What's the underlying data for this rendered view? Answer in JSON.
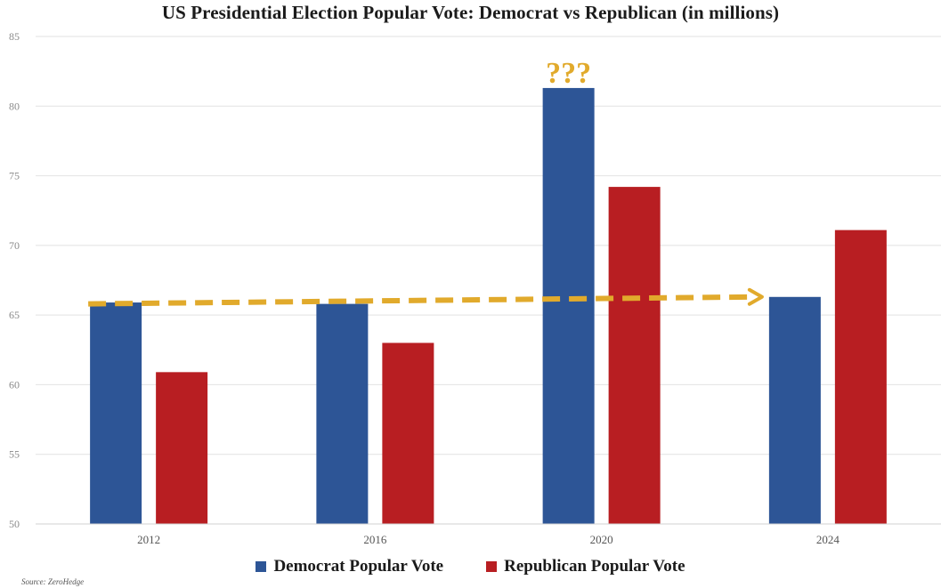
{
  "chart_data": {
    "type": "bar",
    "title": "US Presidential Election Popular Vote: Democrat vs Republican (in millions)",
    "categories": [
      "2012",
      "2016",
      "2020",
      "2024"
    ],
    "series": [
      {
        "name": "Democrat Popular Vote",
        "values": [
          65.9,
          65.8,
          81.3,
          66.3
        ],
        "color": "#2d5596"
      },
      {
        "name": "Republican Popular Vote",
        "values": [
          60.9,
          63.0,
          74.2,
          71.1
        ],
        "color": "#b81e22"
      }
    ],
    "ylim": [
      50,
      85
    ],
    "yticks": [
      50,
      55,
      60,
      65,
      70,
      75,
      80,
      85
    ],
    "xlabel": "",
    "ylabel": "",
    "grid": true,
    "legend_position": "bottom",
    "annotations": [
      {
        "type": "arrow",
        "from": "2012",
        "to": "2024",
        "y_start": 65.8,
        "y_end": 66.3,
        "color": "#e1aa2c",
        "style": "dashed"
      },
      {
        "type": "text",
        "text": "???",
        "category": "2020",
        "series": "Democrat Popular Vote",
        "color": "#e1aa2c"
      }
    ]
  },
  "source_text": "Source: ZeroHedge"
}
